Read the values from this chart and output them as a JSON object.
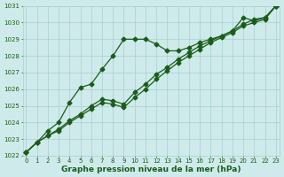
{
  "x": [
    0,
    1,
    2,
    3,
    4,
    5,
    6,
    7,
    8,
    9,
    10,
    11,
    12,
    13,
    14,
    15,
    16,
    17,
    18,
    19,
    20,
    21,
    22,
    23
  ],
  "line1": [
    1022.2,
    1022.8,
    1023.5,
    1024.0,
    1025.2,
    1026.1,
    1026.3,
    1027.2,
    1028.0,
    1029.0,
    1029.0,
    1029.0,
    1028.7,
    1028.3,
    1028.3,
    1028.5,
    1028.8,
    1029.0,
    1029.2,
    1029.5,
    1030.3,
    1030.1,
    1030.3,
    1031.0
  ],
  "line2": [
    1022.2,
    1022.8,
    1023.2,
    1023.6,
    1024.1,
    1024.5,
    1025.0,
    1025.4,
    1025.3,
    1025.1,
    1025.8,
    1026.3,
    1026.9,
    1027.3,
    1027.8,
    1028.2,
    1028.6,
    1028.9,
    1029.2,
    1029.5,
    1029.9,
    1030.2,
    1030.3,
    1031.0
  ],
  "line3": [
    1022.2,
    1022.8,
    1023.2,
    1023.5,
    1024.0,
    1024.4,
    1024.8,
    1025.2,
    1025.1,
    1024.9,
    1025.5,
    1026.0,
    1026.6,
    1027.1,
    1027.6,
    1028.0,
    1028.4,
    1028.8,
    1029.1,
    1029.4,
    1029.8,
    1030.0,
    1030.2,
    1031.0
  ],
  "bg_color": "#ceeaea",
  "grid_color": "#aacfcf",
  "line_color": "#1a5c1a",
  "marker": "D",
  "markersize": 2.5,
  "linewidth": 0.9,
  "ylim": [
    1022,
    1031
  ],
  "xlim": [
    0,
    23
  ],
  "yticks": [
    1022,
    1023,
    1024,
    1025,
    1026,
    1027,
    1028,
    1029,
    1030,
    1031
  ],
  "xticks": [
    0,
    1,
    2,
    3,
    4,
    5,
    6,
    7,
    8,
    9,
    10,
    11,
    12,
    13,
    14,
    15,
    16,
    17,
    18,
    19,
    20,
    21,
    22,
    23
  ],
  "xlabel": "Graphe pression niveau de la mer (hPa)",
  "xlabel_fontsize": 6.5,
  "tick_fontsize": 5.0,
  "tick_color": "#1a5c1a",
  "ylabel_fontsize": 5.5
}
